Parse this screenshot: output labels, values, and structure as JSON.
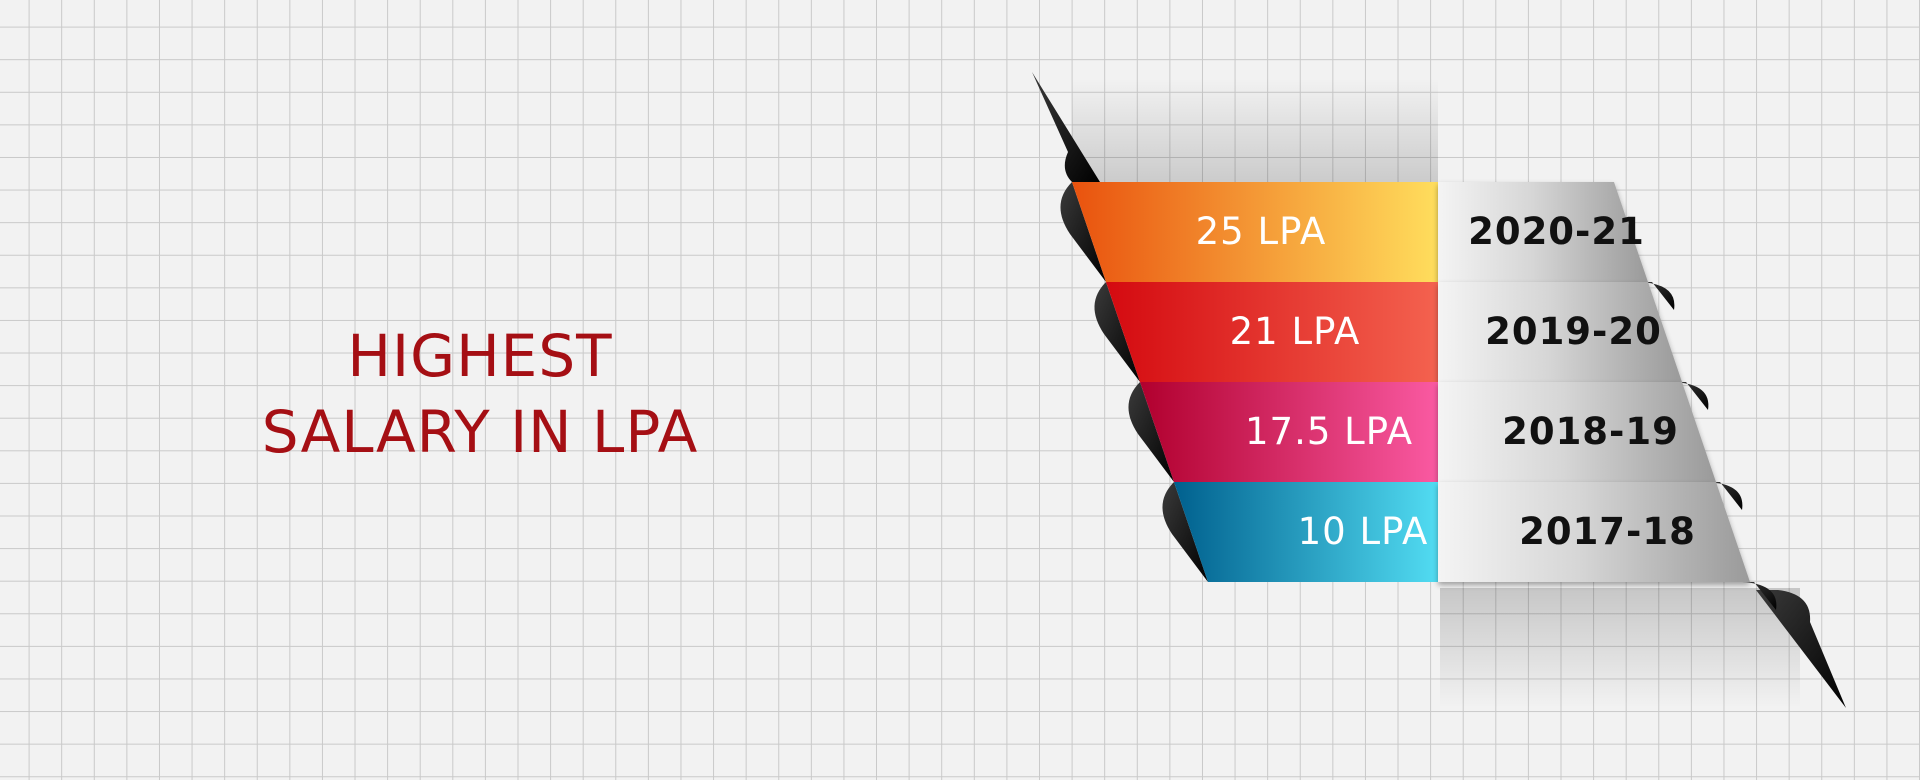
{
  "headline": {
    "line1": "HIGHEST",
    "line2": "SALARY IN LPA"
  },
  "rows": [
    {
      "salary": "25 LPA",
      "year": "2020-21",
      "color_start": "#e9520e",
      "color_end": "#ffde5d"
    },
    {
      "salary": "21 LPA",
      "year": "2019-20",
      "color_start": "#d40a10",
      "color_end": "#f4624f"
    },
    {
      "salary": "17.5 LPA",
      "year": "2018-19",
      "color_start": "#b1002e",
      "color_end": "#fa5aa2"
    },
    {
      "salary": "10 LPA",
      "year": "2017-18",
      "color_start": "#00608e",
      "color_end": "#52dcf2"
    }
  ],
  "colors": {
    "headline": "#a50f14",
    "year_panel_light": "#f4f4f4",
    "year_panel_dark": "#9a9a9a",
    "ribbon_fold": "#0a0a0a"
  }
}
